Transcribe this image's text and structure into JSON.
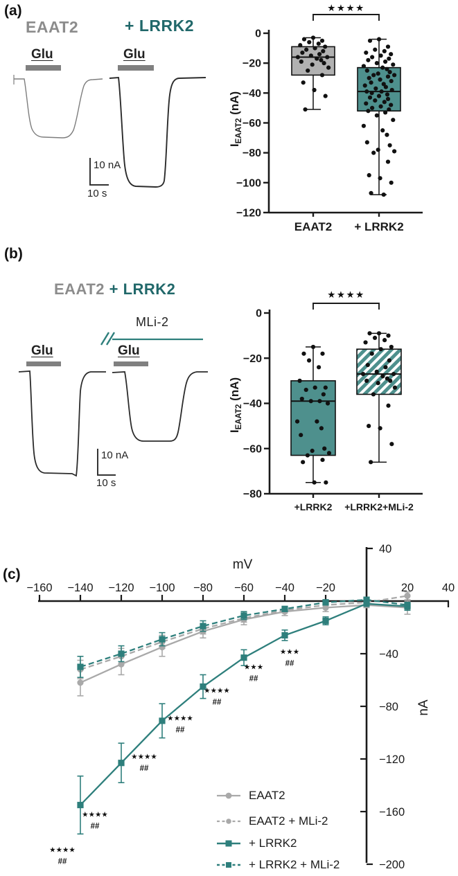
{
  "colors": {
    "teal": "#2e7f7c",
    "teal_dark_text": "#21686a",
    "teal_fill": "#4e908d",
    "gray": "#a9a9a9",
    "gray_text": "#8c8c8c",
    "gray_fill": "#b1b1b1",
    "glu_bar": "#808080",
    "ink": "#1a1a1a"
  },
  "panels": {
    "a": {
      "label": "(a)",
      "condition_left": "EAAT2",
      "condition_right": "+ LRRK2",
      "glu": "Glu",
      "scale_current": "10 nA",
      "scale_time": "10 s"
    },
    "b": {
      "label": "(b)",
      "title_gray": "EAAT2",
      "title_teal": "+ LRRK2",
      "drug": "MLi-2",
      "glu": "Glu",
      "scale_current": "10 nA",
      "scale_time": "10 s"
    },
    "c": {
      "label": "(c)"
    }
  },
  "chart_data": [
    {
      "id": "box-a",
      "type": "box",
      "ylabel": {
        "pre": "I",
        "sub": "EAAT2",
        "post": " (nA)"
      },
      "ylim": [
        -120,
        0
      ],
      "yticks": [
        0,
        -20,
        -40,
        -60,
        -80,
        -100,
        -120
      ],
      "significance": "★★★★",
      "groups": [
        {
          "label": "EAAT2",
          "fill": "gray",
          "whisker_low": -51,
          "q1": -28,
          "median": -16,
          "q3": -9,
          "whisker_high": -3,
          "points": [
            -3,
            -4,
            -5,
            -6,
            -7,
            -8,
            -9,
            -10,
            -11,
            -12,
            -13,
            -14,
            -15,
            -16,
            -16,
            -17,
            -18,
            -19,
            -20,
            -21,
            -23,
            -25,
            -28,
            -33,
            -38,
            -42,
            -51
          ]
        },
        {
          "label": "+ LRRK2",
          "fill": "teal",
          "whisker_low": -108,
          "q1": -52,
          "median": -39,
          "q3": -23,
          "whisker_high": -4,
          "points": [
            -4,
            -5,
            -9,
            -11,
            -12,
            -13,
            -14,
            -15,
            -16,
            -17,
            -18,
            -19,
            -20,
            -21,
            -22,
            -23,
            -24,
            -25,
            -26,
            -27,
            -28,
            -28,
            -29,
            -30,
            -31,
            -32,
            -33,
            -34,
            -35,
            -36,
            -37,
            -38,
            -39,
            -39,
            -40,
            -41,
            -42,
            -43,
            -44,
            -45,
            -46,
            -47,
            -48,
            -49,
            -50,
            -51,
            -52,
            -53,
            -55,
            -58,
            -62,
            -65,
            -68,
            -73,
            -75,
            -78,
            -79,
            -80,
            -86,
            -95,
            -97,
            -100,
            -107,
            -108
          ]
        }
      ]
    },
    {
      "id": "box-b",
      "type": "box",
      "ylabel": {
        "pre": "I",
        "sub": "EAAT2",
        "post": " (nA)"
      },
      "ylim": [
        -80,
        0
      ],
      "yticks": [
        0,
        -20,
        -40,
        -60,
        -80
      ],
      "significance": "★★★★",
      "groups": [
        {
          "label": "+LRRK2",
          "fill": "teal",
          "whisker_low": -75,
          "q1": -63,
          "median": -39,
          "q3": -30,
          "whisker_high": -15,
          "points": [
            -15,
            -18,
            -18,
            -21,
            -24,
            -30,
            -33,
            -33,
            -34,
            -36,
            -38,
            -39,
            -39,
            -40,
            -48,
            -48,
            -51,
            -54,
            -60,
            -61,
            -62,
            -63,
            -65,
            -66,
            -75,
            -75
          ]
        },
        {
          "label": "+LRRK2+MLi-2",
          "fill": "hatch",
          "whisker_low": -66,
          "q1": -36,
          "median": -27,
          "q3": -16,
          "whisker_high": -9,
          "points": [
            -9,
            -9,
            -10,
            -11,
            -12,
            -13,
            -15,
            -16,
            -18,
            -21,
            -23,
            -24,
            -26,
            -27,
            -27,
            -28,
            -29,
            -30,
            -30,
            -31,
            -33,
            -36,
            -41,
            -50,
            -51,
            -58,
            -66
          ]
        }
      ]
    },
    {
      "id": "iv",
      "type": "line",
      "xlabel": "mV",
      "ylabel": "nA",
      "x": [
        -140,
        -120,
        -100,
        -80,
        -60,
        -40,
        -20,
        0,
        20
      ],
      "xlim": [
        -160,
        40
      ],
      "ylim": [
        -200,
        40
      ],
      "xticks": [
        -160,
        -140,
        -120,
        -100,
        -80,
        -60,
        -40,
        -20,
        20,
        40
      ],
      "yticks": [
        40,
        -40,
        -80,
        -120,
        -160,
        -200
      ],
      "series": [
        {
          "name": "EAAT2",
          "color_key": "gray",
          "dash": false,
          "marker": "circle",
          "values": [
            -62,
            -48,
            -35,
            -23,
            -14,
            -8,
            -5,
            -3,
            -5
          ],
          "errors": [
            10,
            8,
            7,
            5,
            4,
            3,
            3,
            2,
            5
          ]
        },
        {
          "name": "EAAT2 + MLi-2",
          "color_key": "gray",
          "dash": true,
          "marker": "circle",
          "values": [
            -52,
            -42,
            -31,
            -21,
            -13,
            -7,
            -3,
            -1,
            4
          ],
          "errors": [
            7,
            6,
            5,
            4,
            3,
            2,
            2,
            2,
            3
          ]
        },
        {
          "name": "+ LRRK2",
          "color_key": "teal",
          "dash": false,
          "marker": "square",
          "values": [
            -155,
            -123,
            -91,
            -65,
            -43,
            -26,
            -15,
            -2,
            -4
          ],
          "errors": [
            22,
            15,
            13,
            9,
            6,
            4,
            3,
            2,
            3
          ]
        },
        {
          "name": "+ LRRK2 + MLi-2",
          "color_key": "teal",
          "dash": true,
          "marker": "square",
          "values": [
            -50,
            -40,
            -29,
            -19,
            -11,
            -6,
            -1,
            1,
            -3
          ],
          "errors": [
            8,
            6,
            5,
            4,
            3,
            2,
            2,
            1,
            2
          ]
        }
      ],
      "annotations": [
        {
          "at_mv": -140,
          "stars": "★★★★",
          "hash": "##"
        },
        {
          "at_mv": -120,
          "stars": "★★★★",
          "hash": "##"
        },
        {
          "at_mv": -100,
          "stars": "★★★★",
          "hash": "##"
        },
        {
          "at_mv": -80,
          "stars": "★★★★",
          "hash": "##"
        },
        {
          "at_mv": -60,
          "stars": "★★★★",
          "hash": "##"
        },
        {
          "at_mv": -40,
          "stars": "★★★",
          "hash": "##"
        },
        {
          "at_mv": -20,
          "stars": "★★★",
          "hash": "##"
        }
      ],
      "legend_position": "bottom-right-inside"
    }
  ]
}
